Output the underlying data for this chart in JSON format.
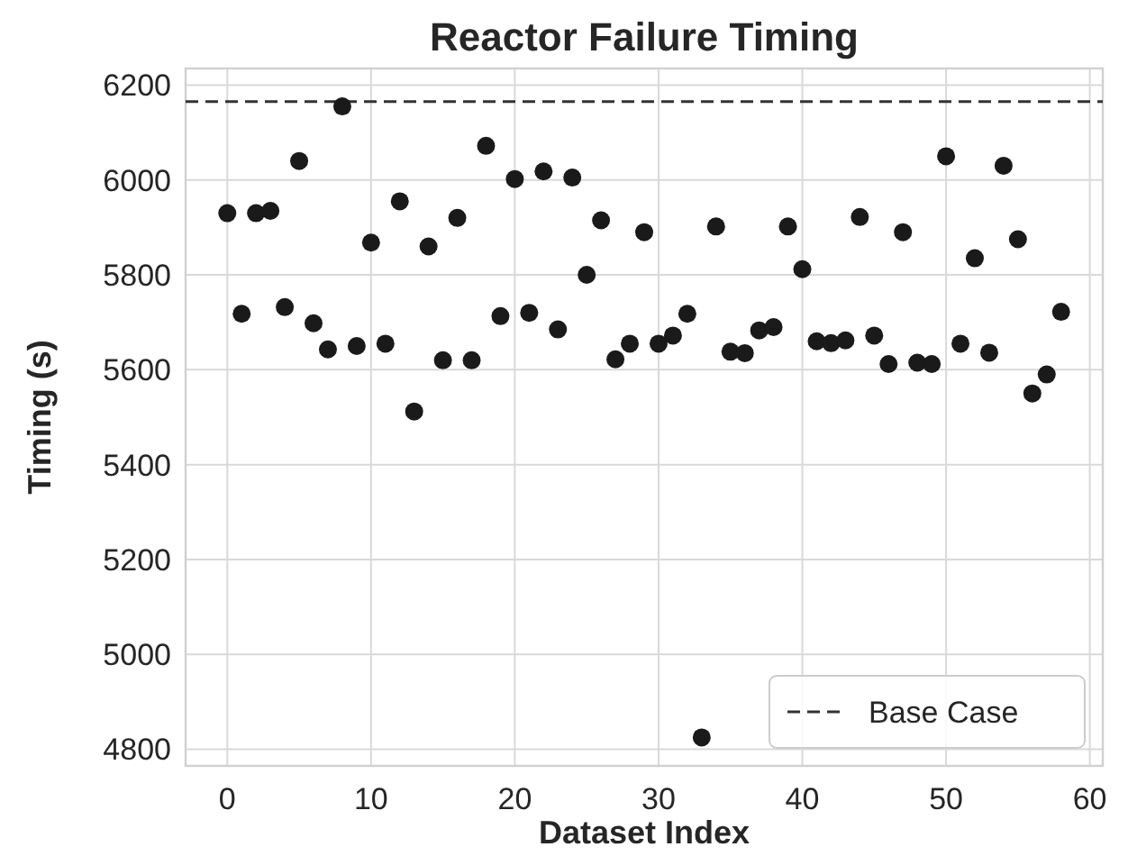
{
  "chart_data": {
    "type": "scatter",
    "title": "Reactor Failure Timing",
    "xlabel": "Dataset Index",
    "ylabel": "Timing (s)",
    "x": [
      0,
      1,
      2,
      3,
      4,
      5,
      6,
      7,
      8,
      9,
      10,
      11,
      12,
      13,
      14,
      15,
      16,
      17,
      18,
      19,
      20,
      21,
      22,
      23,
      24,
      25,
      26,
      27,
      28,
      29,
      30,
      31,
      32,
      33,
      34,
      35,
      36,
      37,
      38,
      39,
      40,
      41,
      42,
      43,
      44,
      45,
      46,
      47,
      48,
      49,
      50,
      51,
      52,
      53,
      54,
      55,
      56,
      57,
      58
    ],
    "series": [
      {
        "color": "#1a1a1a",
        "values": [
          5930,
          5718,
          5930,
          5935,
          5732,
          6040,
          5698,
          5643,
          6155,
          5650,
          5868,
          5655,
          5955,
          5512,
          5860,
          5620,
          5920,
          5620,
          6072,
          5713,
          6002,
          5720,
          6018,
          5685,
          6005,
          5800,
          5915,
          5622,
          5655,
          5890,
          5655,
          5672,
          5718,
          4825,
          5902,
          5638,
          5635,
          5683,
          5690,
          5902,
          5812,
          5660,
          5656,
          5662,
          5922,
          5672,
          5612,
          5890,
          5615,
          5612,
          6050,
          5655,
          5835,
          5636,
          6030,
          5875,
          5550,
          5590,
          5722
        ]
      }
    ],
    "xlim": [
      -2.9,
      60.9
    ],
    "ylim": [
      4765,
      6235
    ],
    "xticks": [
      0,
      10,
      20,
      30,
      40,
      50,
      60
    ],
    "yticks": [
      4800,
      5000,
      5200,
      5400,
      5600,
      5800,
      6000,
      6200
    ],
    "ref_lines": [
      {
        "axis": "y",
        "value": 6165,
        "label": "Base Case",
        "color": "#333333",
        "line_style": "dashed"
      }
    ],
    "grid": true,
    "legend": "bottom right",
    "marker": "circle"
  }
}
